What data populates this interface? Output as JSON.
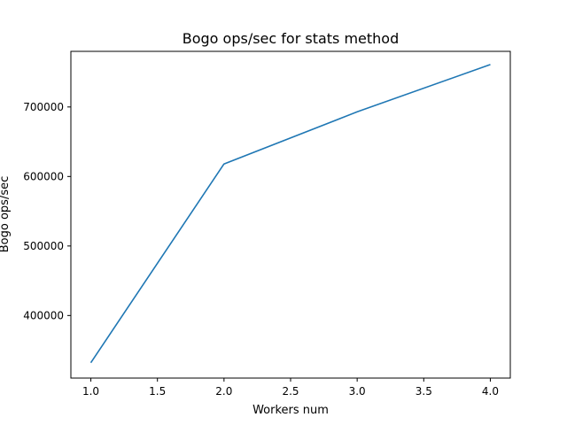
{
  "chart_data": {
    "type": "line",
    "title": "Bogo ops/sec for stats method",
    "xlabel": "Workers num",
    "ylabel": "Bogo ops/sec",
    "x": [
      1.0,
      2.0,
      3.0,
      4.0
    ],
    "series": [
      {
        "values": [
          332000,
          618000,
          693000,
          761000
        ],
        "color": "#1f77b4"
      }
    ],
    "xlim": [
      0.85,
      4.15
    ],
    "ylim": [
      310000,
      780000
    ],
    "xticks": [
      1.0,
      1.5,
      2.0,
      2.5,
      3.0,
      3.5,
      4.0
    ],
    "xtick_labels": [
      "1.0",
      "1.5",
      "2.0",
      "2.5",
      "3.0",
      "3.5",
      "4.0"
    ],
    "yticks": [
      400000,
      500000,
      600000,
      700000
    ],
    "ytick_labels": [
      "400000",
      "500000",
      "600000",
      "700000"
    ],
    "grid": false,
    "legend": false
  }
}
